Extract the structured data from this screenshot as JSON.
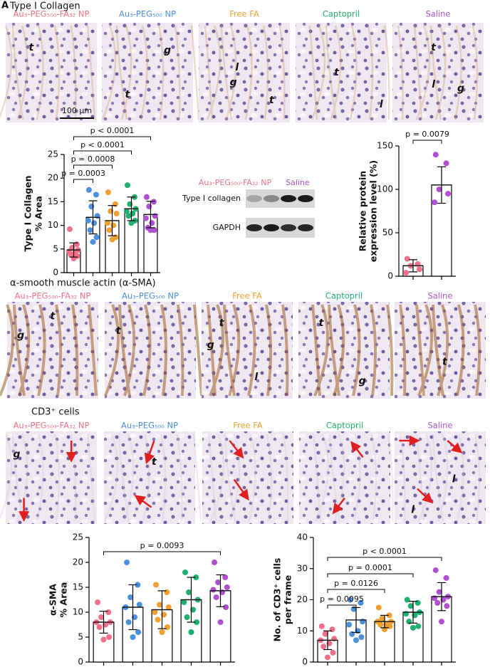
{
  "figure_label": "A",
  "groups": [
    {
      "name": "Au₃-PEG₅₀₀-FA₃₂ NP",
      "color": "#f0708a"
    },
    {
      "name": "Au₃-PEG₅₀₀ NP",
      "color": "#4a90dc"
    },
    {
      "name": "Free FA",
      "color": "#f0a030"
    },
    {
      "name": "Captopril",
      "color": "#1fb070"
    },
    {
      "name": "Saline",
      "color": "#b050d0"
    }
  ],
  "sections": [
    {
      "title": "Type I Collagen",
      "scale_bar": "100 μm",
      "stain": "#c9a070",
      "marks": [
        [
          "t"
        ],
        [
          "g",
          "t"
        ],
        [
          "l",
          "g",
          "t"
        ],
        [
          "t",
          "l"
        ],
        [
          "t",
          "l",
          "g"
        ]
      ]
    },
    {
      "title": "α-smooth muscle actin (α-SMA)",
      "stain": "#a0602a",
      "marks": [
        [
          "g",
          "t"
        ],
        [
          "t"
        ],
        [
          "t",
          "g",
          "l"
        ],
        [
          "t",
          "g"
        ],
        [
          "t"
        ]
      ]
    },
    {
      "title": "CD3⁺ cells",
      "stain": "#d8c8d8",
      "marks": [
        [
          "g"
        ],
        [
          "t"
        ],
        [],
        [],
        [
          "l",
          "l"
        ]
      ]
    }
  ],
  "western_blot": {
    "rows": [
      "Type I collagen",
      "GAPDH"
    ]
  },
  "chart_data": [
    {
      "type": "bar",
      "ylabel": [
        "Type I Collagen",
        "% Area"
      ],
      "categories": [
        null,
        null,
        null,
        null,
        null
      ],
      "values": [
        4.8,
        11.7,
        11.0,
        13.5,
        12.3
      ],
      "errors": [
        1.5,
        3.5,
        3.2,
        2.5,
        2.8
      ],
      "colors": [
        "#f0708a",
        "#4a90dc",
        "#f0a030",
        "#1fb070",
        "#b050d0"
      ],
      "points": [
        [
          9.2,
          6.0,
          5.3,
          4.8,
          4.5,
          4.2,
          3.8,
          3.5,
          3.0
        ],
        [
          17.5,
          16.5,
          14.0,
          12.0,
          11.0,
          10.5,
          9.0,
          7.5,
          6.5
        ],
        [
          17.0,
          14.5,
          13.0,
          12.5,
          10.5,
          10.0,
          9.0,
          7.5,
          7.0
        ],
        [
          18.5,
          16.0,
          14.5,
          13.5,
          13.0,
          12.5,
          12.0,
          11.0,
          10.5
        ],
        [
          16.0,
          15.0,
          14.0,
          12.0,
          11.5,
          10.5,
          9.5,
          9.0,
          9.0
        ]
      ],
      "ylim": [
        0,
        25
      ],
      "yticks": [
        0,
        5,
        10,
        15,
        20,
        25
      ],
      "annotations": [
        "p < 0.0001",
        "p < 0.0001",
        "p = 0.0008",
        "p = 0.0003"
      ]
    },
    {
      "type": "bar",
      "ylabel": [
        "Relative protein",
        "expression level (%)"
      ],
      "categories": [
        null,
        null
      ],
      "values": [
        12,
        105
      ],
      "errors": [
        7,
        21
      ],
      "colors": [
        "#f0708a",
        "#b050d0"
      ],
      "points": [
        [
          20,
          14,
          12,
          8,
          4
        ],
        [
          140,
          130,
          100,
          95,
          85
        ]
      ],
      "ylim": [
        0,
        150
      ],
      "yticks": [
        0,
        50,
        100,
        150
      ],
      "annotations": [
        "p = 0.0079"
      ]
    },
    {
      "type": "bar",
      "ylabel": [
        "α-SMA",
        "% Area"
      ],
      "categories": [
        null,
        null,
        null,
        null,
        null
      ],
      "values": [
        8.0,
        11.0,
        10.5,
        12.5,
        14.3
      ],
      "errors": [
        2.2,
        4.5,
        3.8,
        4.5,
        3.2
      ],
      "colors": [
        "#f0708a",
        "#4a90dc",
        "#f0a030",
        "#1fb070",
        "#b050d0"
      ],
      "points": [
        [
          12.0,
          10.0,
          9.0,
          8.0,
          8.0,
          7.5,
          7.0,
          5.0,
          4.5
        ],
        [
          20.0,
          15.5,
          13.0,
          11.5,
          11.0,
          9.0,
          8.0,
          6.0,
          5.0
        ],
        [
          15.5,
          14.0,
          11.5,
          11.0,
          10.0,
          9.5,
          8.5,
          7.0,
          6.0
        ],
        [
          18.0,
          17.0,
          14.0,
          12.5,
          12.0,
          10.5,
          9.0,
          8.0,
          6.0
        ],
        [
          20.0,
          17.0,
          16.0,
          15.0,
          14.5,
          14.0,
          13.0,
          11.0,
          8.0
        ]
      ],
      "ylim": [
        0,
        25
      ],
      "yticks": [
        0,
        5,
        10,
        15,
        20,
        25
      ],
      "annotations": [
        "p = 0.0093"
      ]
    },
    {
      "type": "bar",
      "ylabel": [
        "No. of CD3⁺ cells",
        "per frame"
      ],
      "categories": [
        null,
        null,
        null,
        null,
        null
      ],
      "values": [
        7,
        13.5,
        13,
        16,
        21
      ],
      "errors": [
        3,
        4,
        2,
        3.5,
        4.5
      ],
      "colors": [
        "#f0708a",
        "#4a90dc",
        "#f0a030",
        "#1fb070",
        "#b050d0"
      ],
      "points": [
        [
          11.5,
          10.5,
          9.0,
          7.5,
          7.0,
          6.0,
          5.0,
          3.0,
          1.5
        ],
        [
          20.0,
          19.0,
          17.0,
          13.0,
          12.0,
          10.0,
          9.0,
          8.0,
          7.0
        ],
        [
          17.5,
          15.0,
          14.0,
          13.0,
          13.0,
          12.0,
          12.0,
          11.5,
          10.5
        ],
        [
          20.0,
          19.0,
          18.0,
          16.0,
          15.5,
          15.0,
          13.0,
          11.5,
          11.0
        ],
        [
          29.5,
          27.0,
          22.5,
          21.0,
          20.5,
          20.0,
          19.0,
          18.0,
          13.0
        ]
      ],
      "ylim": [
        0,
        40
      ],
      "yticks": [
        0,
        10,
        20,
        30,
        40
      ],
      "annotations": [
        "p < 0.0001",
        "p = 0.0001",
        "p = 0.0126",
        "p = 0.0095"
      ]
    }
  ]
}
